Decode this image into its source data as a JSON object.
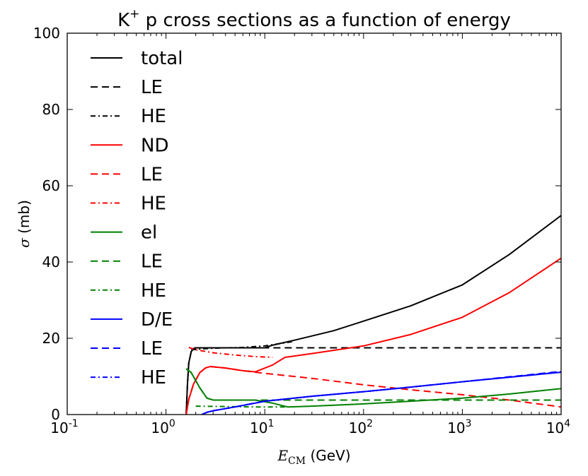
{
  "chart_data": {
    "type": "line",
    "title": {
      "main": "K",
      "sup": "+",
      "rest": " p cross sections as a function of energy"
    },
    "xlabel": {
      "var": "E",
      "sub": "CM",
      "unit": " (GeV)"
    },
    "ylabel": {
      "var": "σ",
      "unit": " (mb)"
    },
    "xscale": "log",
    "xlim": [
      0.1,
      10000
    ],
    "ylim": [
      0,
      100
    ],
    "yticks": [
      "0",
      "20",
      "40",
      "60",
      "80",
      "100"
    ],
    "xticks": [
      {
        "base": "10",
        "exp": "-1"
      },
      {
        "base": "10",
        "exp": "0"
      },
      {
        "base": "10",
        "exp": "1"
      },
      {
        "base": "10",
        "exp": "2"
      },
      {
        "base": "10",
        "exp": "3"
      },
      {
        "base": "10",
        "exp": "4"
      }
    ],
    "grid": false,
    "legend_position": "top-left",
    "series": [
      {
        "name": "total",
        "color": "#000000",
        "style": "solid",
        "points": [
          [
            1.6,
            0
          ],
          [
            1.65,
            8
          ],
          [
            1.7,
            13.5
          ],
          [
            1.8,
            16.5
          ],
          [
            1.9,
            17.3
          ],
          [
            2,
            17.5
          ],
          [
            3,
            17.5
          ],
          [
            5,
            17.5
          ],
          [
            8,
            17.5
          ],
          [
            10,
            17.5
          ],
          [
            12,
            18.2
          ],
          [
            20,
            19.5
          ],
          [
            50,
            22
          ],
          [
            100,
            24.5
          ],
          [
            300,
            28.5
          ],
          [
            1000,
            34
          ],
          [
            3000,
            42
          ],
          [
            10000,
            52.2
          ]
        ]
      },
      {
        "name": "LE",
        "color": "#000000",
        "style": "dashed",
        "points": [
          [
            1.6,
            0
          ],
          [
            1.65,
            8
          ],
          [
            1.7,
            13.5
          ],
          [
            1.8,
            16.5
          ],
          [
            1.9,
            17.3
          ],
          [
            2,
            17.5
          ],
          [
            10,
            17.5
          ],
          [
            100,
            17.5
          ],
          [
            1000,
            17.5
          ],
          [
            10000,
            17.5
          ]
        ]
      },
      {
        "name": "HE",
        "color": "#000000",
        "style": "dashdot",
        "points": [
          [
            1.8,
            17
          ],
          [
            3,
            17.4
          ],
          [
            6,
            17.6
          ],
          [
            10,
            18
          ],
          [
            20,
            19.2
          ]
        ]
      },
      {
        "name": "ND",
        "color": "#ff0000",
        "style": "solid",
        "points": [
          [
            1.6,
            0
          ],
          [
            1.7,
            4
          ],
          [
            1.9,
            8
          ],
          [
            2.2,
            11
          ],
          [
            2.5,
            12.2
          ],
          [
            2.8,
            12.6
          ],
          [
            4,
            12.2
          ],
          [
            6,
            11.5
          ],
          [
            8,
            11.2
          ],
          [
            12,
            13
          ],
          [
            16,
            15
          ],
          [
            30,
            16
          ],
          [
            100,
            18
          ],
          [
            300,
            21
          ],
          [
            1000,
            25.5
          ],
          [
            3000,
            32
          ],
          [
            10000,
            41
          ]
        ]
      },
      {
        "name": "LE",
        "color": "#ff0000",
        "style": "dashed",
        "points": [
          [
            1.6,
            0
          ],
          [
            1.7,
            4
          ],
          [
            1.9,
            8
          ],
          [
            2.2,
            11
          ],
          [
            2.5,
            12.2
          ],
          [
            2.8,
            12.6
          ],
          [
            4,
            12.2
          ],
          [
            6,
            11.5
          ],
          [
            10,
            10.8
          ],
          [
            30,
            9.5
          ],
          [
            100,
            7.8
          ],
          [
            300,
            6.5
          ],
          [
            1000,
            5.2
          ],
          [
            3000,
            3.8
          ],
          [
            10000,
            2
          ]
        ]
      },
      {
        "name": "HE",
        "color": "#ff0000",
        "style": "dashdot",
        "points": [
          [
            1.7,
            17.6
          ],
          [
            2,
            17
          ],
          [
            3,
            16.2
          ],
          [
            5,
            15.6
          ],
          [
            8,
            15.2
          ],
          [
            12,
            15
          ]
        ]
      },
      {
        "name": "el",
        "color": "#008000",
        "style": "solid",
        "points": [
          [
            1.6,
            12
          ],
          [
            1.8,
            11
          ],
          [
            2.2,
            7
          ],
          [
            2.6,
            4.3
          ],
          [
            3,
            3.8
          ],
          [
            5,
            3.8
          ],
          [
            8,
            3.8
          ],
          [
            12,
            3
          ],
          [
            17,
            2
          ],
          [
            30,
            2.2
          ],
          [
            100,
            2.8
          ],
          [
            300,
            3.5
          ],
          [
            1000,
            4.3
          ],
          [
            3000,
            5.4
          ],
          [
            10000,
            6.8
          ]
        ]
      },
      {
        "name": "LE",
        "color": "#008000",
        "style": "dashed",
        "points": [
          [
            1.6,
            12
          ],
          [
            1.8,
            11
          ],
          [
            2.2,
            7
          ],
          [
            2.6,
            4.3
          ],
          [
            3,
            3.8
          ],
          [
            10,
            3.8
          ],
          [
            100,
            3.8
          ],
          [
            1000,
            3.8
          ],
          [
            10000,
            3.8
          ]
        ]
      },
      {
        "name": "HE",
        "color": "#008000",
        "style": "dashdot",
        "points": [
          [
            2,
            2.2
          ],
          [
            4,
            2.1
          ],
          [
            8,
            2
          ],
          [
            12,
            2
          ],
          [
            17,
            2
          ]
        ]
      },
      {
        "name": "D/E",
        "color": "#0000ff",
        "style": "solid",
        "points": [
          [
            2.3,
            0
          ],
          [
            2.6,
            0.6
          ],
          [
            3,
            1
          ],
          [
            5,
            2
          ],
          [
            10,
            3.5
          ],
          [
            30,
            4.8
          ],
          [
            100,
            6
          ],
          [
            300,
            7.2
          ],
          [
            1000,
            8.6
          ],
          [
            3000,
            9.8
          ],
          [
            10000,
            11.1
          ]
        ]
      },
      {
        "name": "LE",
        "color": "#0000ff",
        "style": "dashed",
        "points": [
          [
            2.3,
            0
          ],
          [
            2.6,
            0.6
          ],
          [
            3,
            1
          ],
          [
            5,
            2
          ],
          [
            10,
            3.5
          ],
          [
            30,
            4.8
          ],
          [
            100,
            6
          ],
          [
            300,
            7.2
          ],
          [
            1000,
            8.6
          ],
          [
            3000,
            9.9
          ],
          [
            10000,
            11.3
          ]
        ]
      },
      {
        "name": "HE",
        "color": "#0000ff",
        "style": "dashdot",
        "points": [
          [
            2.3,
            0
          ],
          [
            2.6,
            0.6
          ],
          [
            3,
            1
          ],
          [
            5,
            2
          ],
          [
            10,
            3.5
          ],
          [
            30,
            4.8
          ],
          [
            100,
            6
          ],
          [
            300,
            7.2
          ],
          [
            1000,
            8.6
          ],
          [
            3000,
            9.8
          ],
          [
            10000,
            11.2
          ]
        ]
      }
    ]
  }
}
